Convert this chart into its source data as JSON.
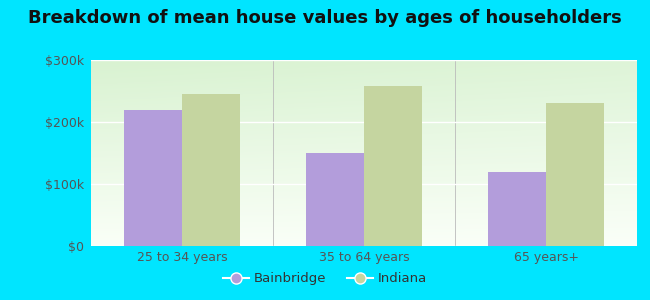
{
  "title": "Breakdown of mean house values by ages of householders",
  "categories": [
    "25 to 34 years",
    "35 to 64 years",
    "65 years+"
  ],
  "bainbridge_values": [
    220000,
    150000,
    120000
  ],
  "indiana_values": [
    245000,
    258000,
    230000
  ],
  "bainbridge_color": "#b39ddb",
  "indiana_color": "#c5d5a0",
  "background_outer": "#00e5ff",
  "ylim": [
    0,
    300000
  ],
  "yticks": [
    0,
    100000,
    200000,
    300000
  ],
  "ytick_labels": [
    "$0",
    "$100k",
    "$200k",
    "$300k"
  ],
  "bar_width": 0.32,
  "legend_labels": [
    "Bainbridge",
    "Indiana"
  ],
  "title_fontsize": 13,
  "tick_fontsize": 9,
  "legend_fontsize": 9.5
}
